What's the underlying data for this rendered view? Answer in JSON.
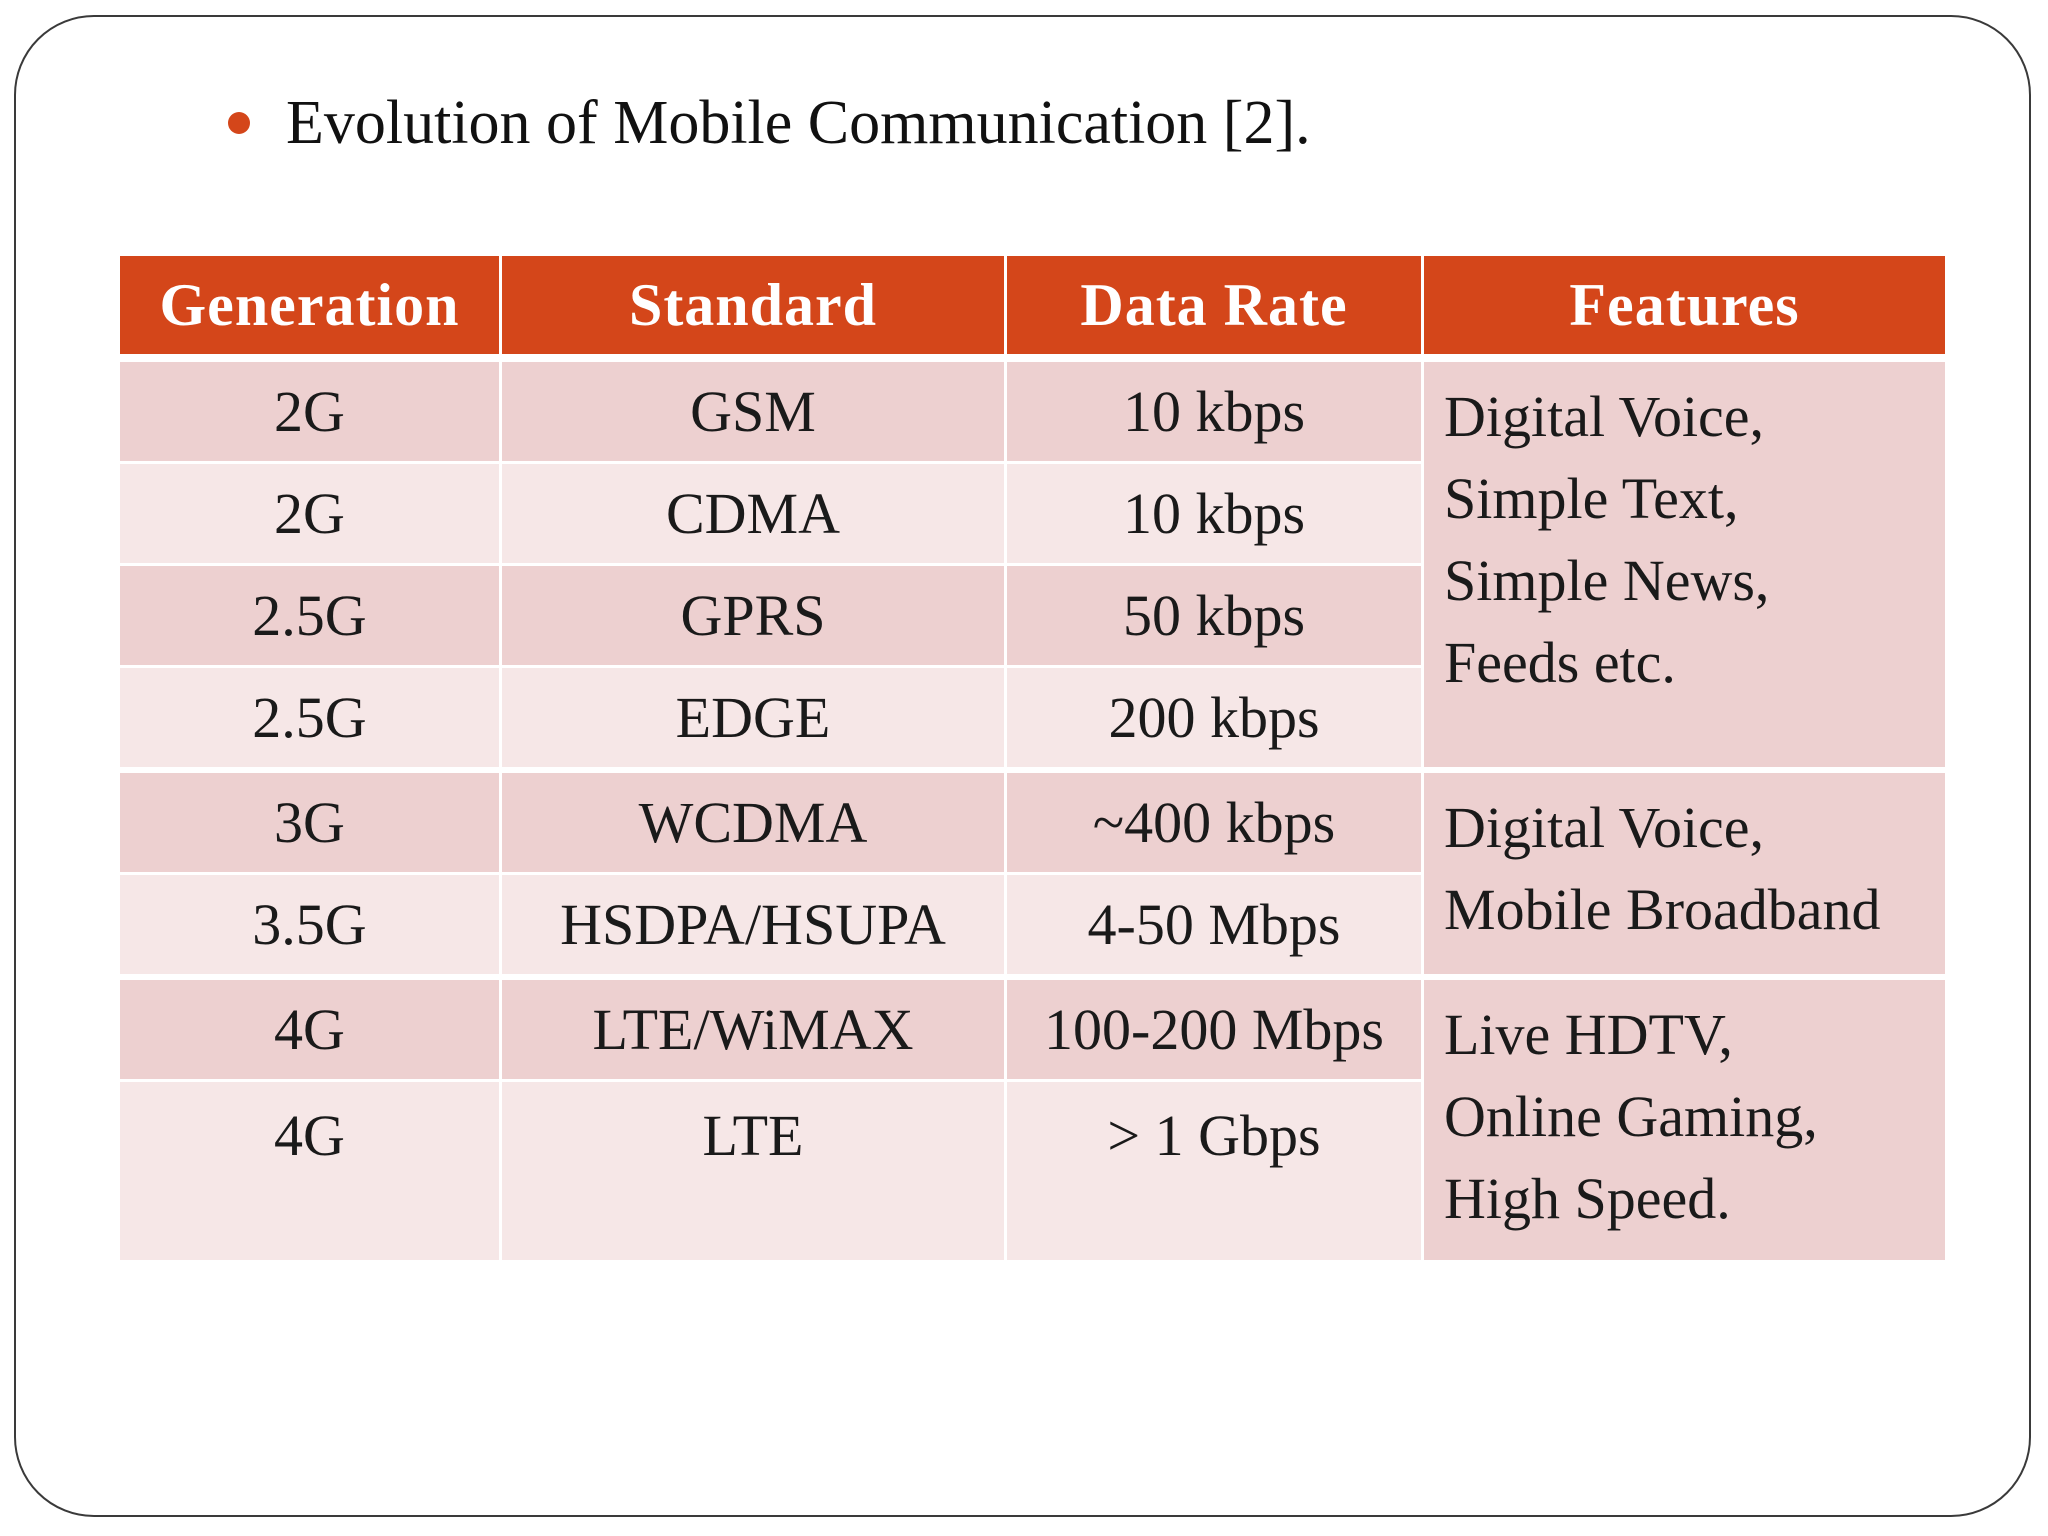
{
  "slide": {
    "heading": "Evolution of Mobile Communication [2].",
    "bullet_color": "#d4461a"
  },
  "table": {
    "header_color": "#d4461a",
    "columns": [
      "Generation",
      "Standard",
      "Data Rate",
      "Features"
    ],
    "rows": [
      {
        "generation": "2G",
        "standard": "GSM",
        "data_rate": "10 kbps"
      },
      {
        "generation": "2G",
        "standard": "CDMA",
        "data_rate": "10 kbps"
      },
      {
        "generation": "2.5G",
        "standard": "GPRS",
        "data_rate": "50 kbps"
      },
      {
        "generation": "2.5G",
        "standard": "EDGE",
        "data_rate": "200 kbps"
      },
      {
        "generation": "3G",
        "standard": "WCDMA",
        "data_rate": "~400 kbps"
      },
      {
        "generation": "3.5G",
        "standard": "HSDPA/HSUPA",
        "data_rate": "4-50 Mbps"
      },
      {
        "generation": "4G",
        "standard": "LTE/WiMAX",
        "data_rate": "100-200 Mbps"
      },
      {
        "generation": "4G",
        "standard": "LTE",
        "data_rate": "> 1 Gbps"
      }
    ],
    "features": [
      [
        "Digital Voice,",
        "Simple Text,",
        "Simple News,",
        "Feeds etc."
      ],
      [
        "Digital Voice,",
        "Mobile Broadband"
      ],
      [
        "Live HDTV,",
        "Online Gaming,",
        "High Speed."
      ]
    ]
  }
}
